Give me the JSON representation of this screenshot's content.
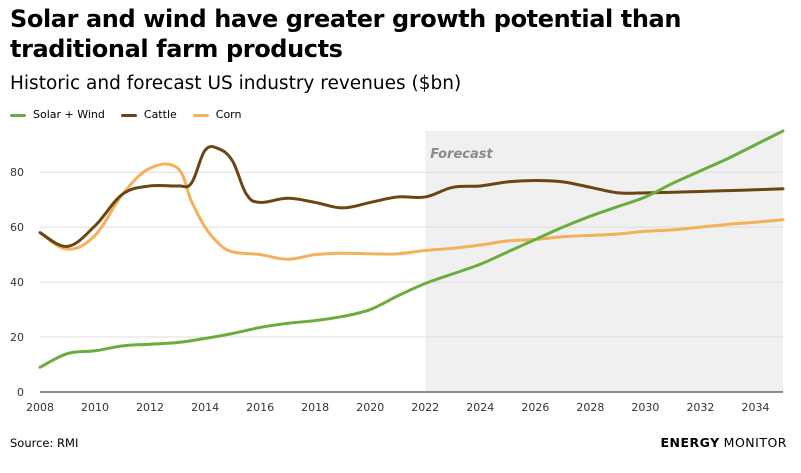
{
  "title": "Solar and wind have greater growth potential than traditional farm products",
  "subtitle": "Historic and forecast US industry revenues ($bn)",
  "source": "Source: RMI",
  "brand": {
    "part1": "ENERGY",
    "part2": "MONITOR"
  },
  "colors": {
    "solar_wind": "#6aad3d",
    "cattle": "#6b4514",
    "corn": "#f4b05a",
    "forecast_bg": "#f0f0f0"
  },
  "chart_data": {
    "type": "line",
    "title": "Solar and wind have greater growth potential than traditional farm products",
    "subtitle": "Historic and forecast US industry revenues ($bn)",
    "xlim": [
      2008,
      2035
    ],
    "ylim": [
      0,
      95
    ],
    "x_ticks": [
      "2008",
      "2010",
      "2012",
      "2014",
      "2016",
      "2018",
      "2020",
      "2022",
      "2024",
      "2026",
      "2028",
      "2030",
      "2032",
      "2034"
    ],
    "y_ticks": [
      "0",
      "20",
      "40",
      "60",
      "80"
    ],
    "grid": "horizontal",
    "legend_position": "top-left",
    "forecast": {
      "label": "Forecast",
      "start": 2022,
      "end": 2035
    },
    "series": [
      {
        "name": "Solar + Wind",
        "color": "#6aad3d",
        "x": [
          2008,
          2009,
          2010,
          2011,
          2012,
          2013,
          2014,
          2015,
          2016,
          2017,
          2018,
          2019,
          2020,
          2021,
          2022,
          2023,
          2024,
          2025,
          2026,
          2027,
          2028,
          2029,
          2030,
          2031,
          2032,
          2033,
          2034,
          2035
        ],
        "y": [
          9,
          14,
          15,
          16.8,
          17.4,
          18,
          19.5,
          21.3,
          23.5,
          25,
          26,
          27.5,
          30,
          35,
          39.5,
          43,
          46.5,
          51,
          55.5,
          60,
          64,
          67.5,
          71,
          76,
          80.5,
          85,
          90,
          95
        ]
      },
      {
        "name": "Cattle",
        "color": "#6b4514",
        "x": [
          2008,
          2009,
          2010,
          2011,
          2012,
          2013,
          2013.5,
          2014,
          2014.5,
          2015,
          2015.5,
          2016,
          2017,
          2018,
          2019,
          2020,
          2021,
          2022,
          2023,
          2024,
          2025,
          2026,
          2027,
          2028,
          2029,
          2030,
          2031,
          2032,
          2033,
          2034,
          2035
        ],
        "y": [
          58,
          53,
          60.5,
          72,
          75,
          75,
          76,
          88,
          88.5,
          84,
          72,
          69,
          70.5,
          69,
          67,
          69,
          71,
          71,
          74.5,
          75,
          76.5,
          77,
          76.5,
          74.5,
          72.5,
          72.5,
          72.7,
          73,
          73.3,
          73.6,
          74
        ]
      },
      {
        "name": "Corn",
        "color": "#f4b05a",
        "x": [
          2008,
          2009,
          2010,
          2011,
          2012,
          2013,
          2013.5,
          2014,
          2014.5,
          2015,
          2016,
          2017,
          2018,
          2019,
          2020,
          2021,
          2022,
          2023,
          2024,
          2025,
          2026,
          2027,
          2028,
          2029,
          2030,
          2031,
          2032,
          2033,
          2034,
          2035
        ],
        "y": [
          58,
          52,
          57,
          72,
          81.5,
          81.5,
          69.5,
          60,
          54,
          51,
          50,
          48.3,
          50,
          50.5,
          50.3,
          50.3,
          51.5,
          52.3,
          53.5,
          55,
          55.5,
          56.5,
          57,
          57.5,
          58.5,
          59,
          60,
          61,
          61.8,
          62.7
        ]
      }
    ]
  }
}
